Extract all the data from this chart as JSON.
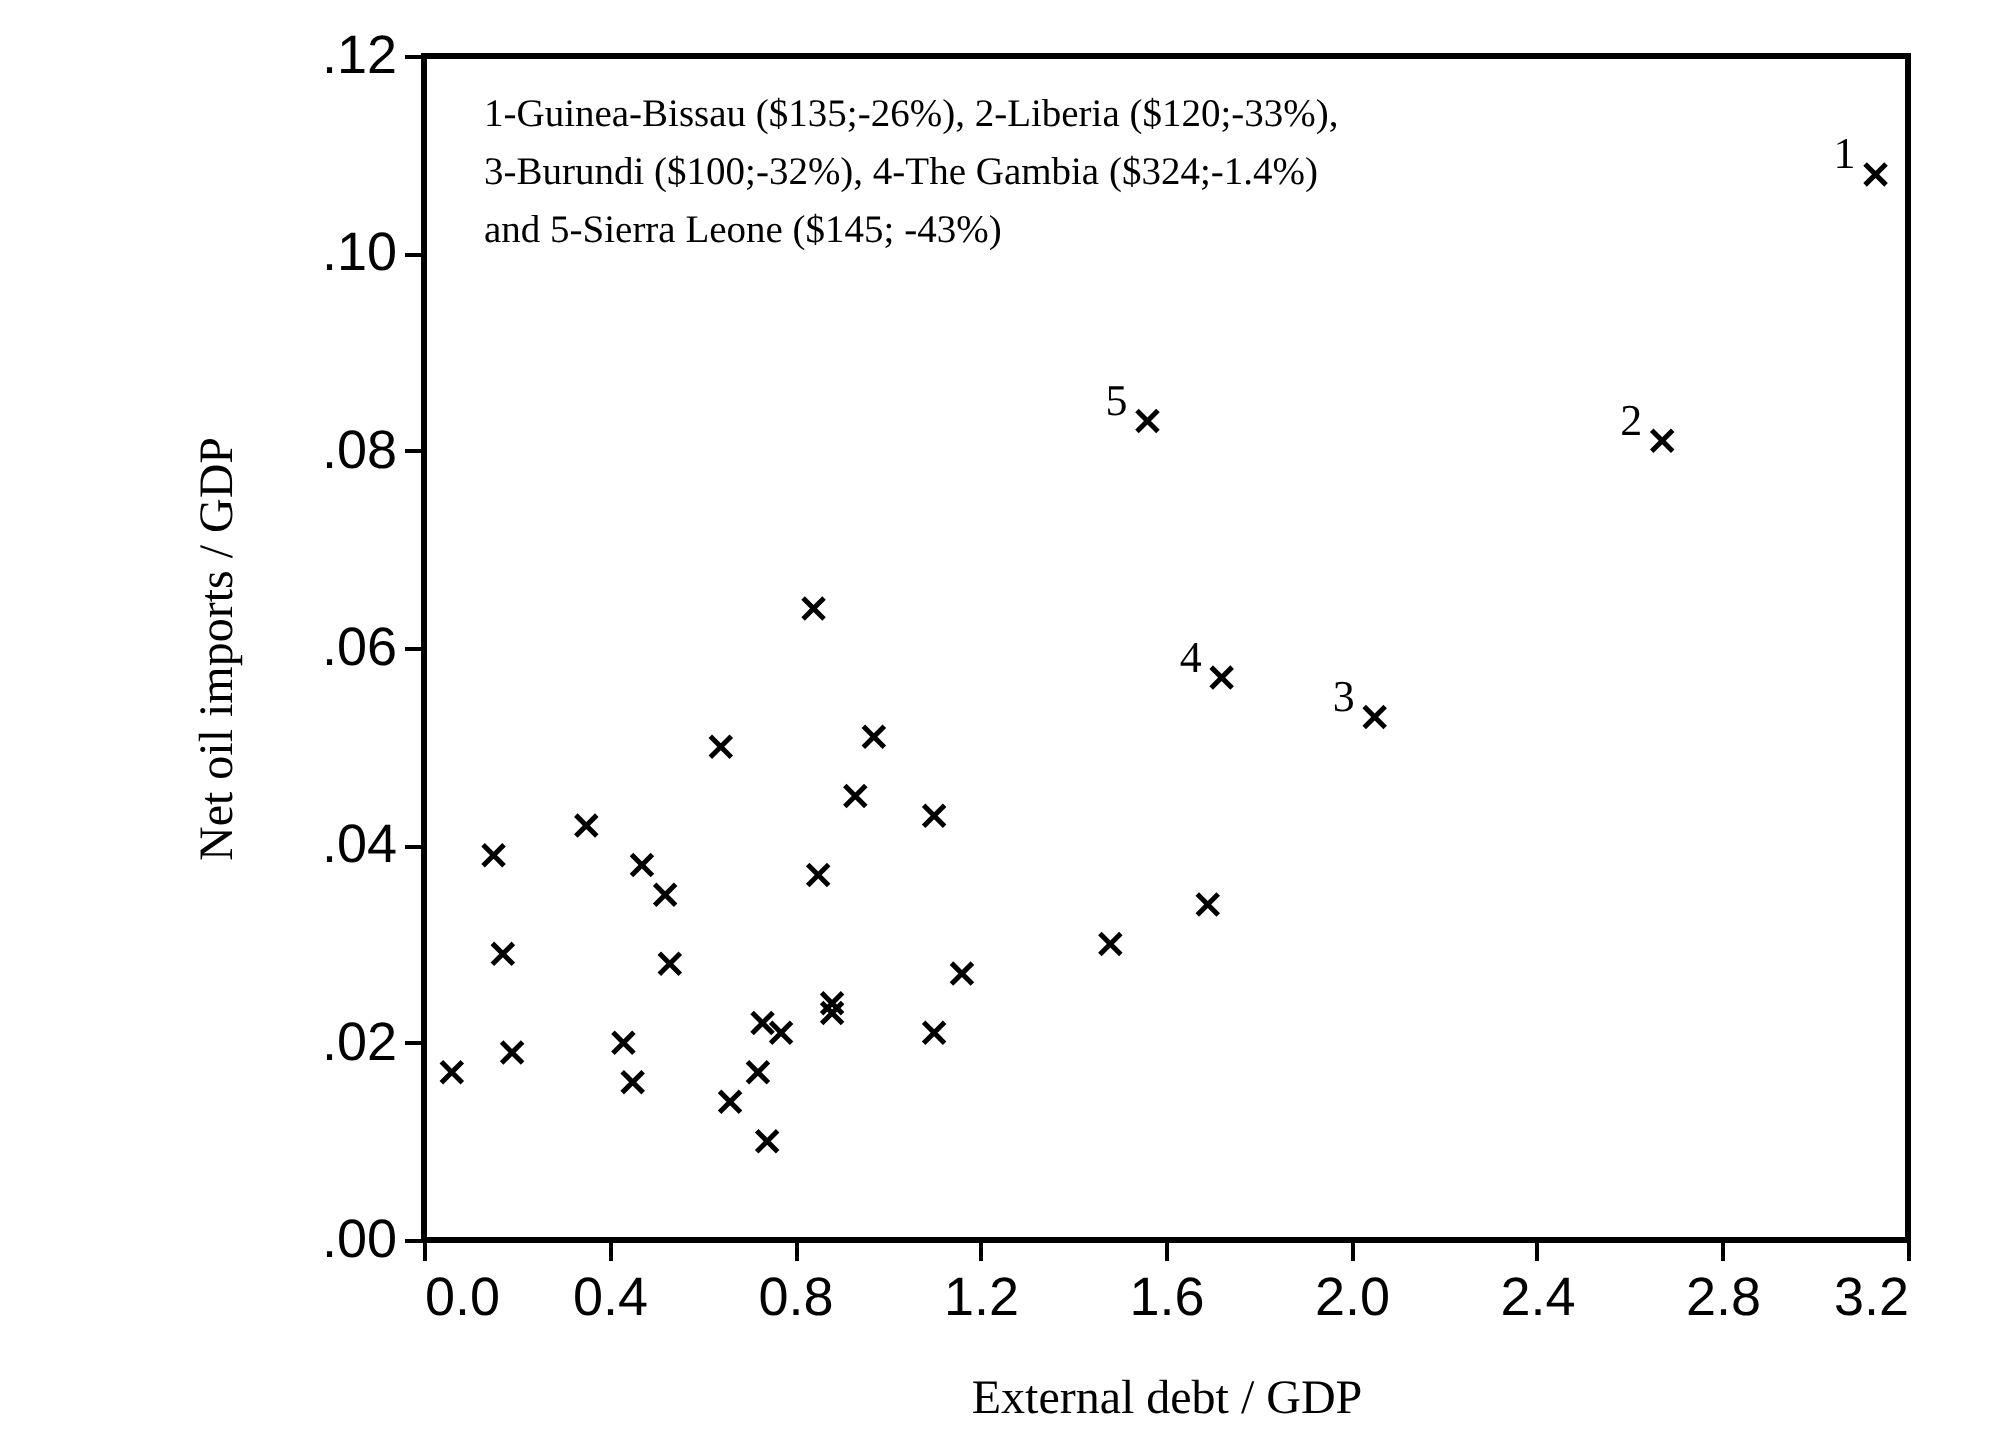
{
  "chart_data": {
    "type": "scatter",
    "xlabel": "External debt / GDP",
    "ylabel": "Net oil imports / GDP",
    "x": [
      0.06,
      0.15,
      0.17,
      0.19,
      0.35,
      0.43,
      0.45,
      0.47,
      0.52,
      0.53,
      0.64,
      0.66,
      0.72,
      0.73,
      0.74,
      0.77,
      0.84,
      0.85,
      0.88,
      0.88,
      0.93,
      0.97,
      1.1,
      1.1,
      1.16,
      1.48,
      1.69,
      1.72,
      2.05,
      1.56,
      2.67,
      3.13
    ],
    "series": [
      {
        "color": "#000000",
        "values": [
          0.017,
          0.039,
          0.029,
          0.019,
          0.042,
          0.02,
          0.016,
          0.038,
          0.035,
          0.028,
          0.05,
          0.014,
          0.017,
          0.022,
          0.01,
          0.021,
          0.064,
          0.037,
          0.024,
          0.023,
          0.045,
          0.051,
          0.043,
          0.021,
          0.027,
          0.03,
          0.034,
          0.057,
          0.053,
          0.083,
          0.081,
          0.108
        ]
      }
    ],
    "xlim": [
      0,
      3.2
    ],
    "ylim": [
      0,
      0.12
    ],
    "xticks": [
      {
        "value": 0,
        "label": "0.0"
      },
      0.4,
      0.8,
      1.2,
      1.6,
      {
        "value": 2,
        "label": "2.0"
      },
      2.4,
      2.8,
      3.2
    ],
    "yticks": [
      {
        "value": 0,
        "label": ".00"
      },
      {
        "value": 0.02,
        "label": ".02"
      },
      {
        "value": 0.04,
        "label": ".04"
      },
      {
        "value": 0.06,
        "label": ".06"
      },
      {
        "value": 0.08,
        "label": ".08"
      },
      {
        "value": 0.1,
        "label": ".10"
      },
      {
        "value": 0.12,
        "label": ".12"
      }
    ],
    "marker": "cross",
    "grid": false,
    "legend": false,
    "annotations": [
      "1-Guinea-Bissau ($135;-26%), 2-Liberia ($120;-33%),\n3-Burundi ($100;-32%), 4-The Gambia ($324;-1.4%)\nand 5-Sierra Leone ($145; -43%)",
      {
        "text": "1",
        "x": 3.13,
        "y": 0.108
      },
      {
        "text": "2",
        "x": 2.67,
        "y": 0.081
      },
      {
        "text": "3",
        "x": 2.05,
        "y": 0.053
      },
      {
        "text": "4",
        "x": 1.72,
        "y": 0.057
      },
      {
        "text": "5",
        "x": 1.56,
        "y": 0.083
      }
    ]
  }
}
